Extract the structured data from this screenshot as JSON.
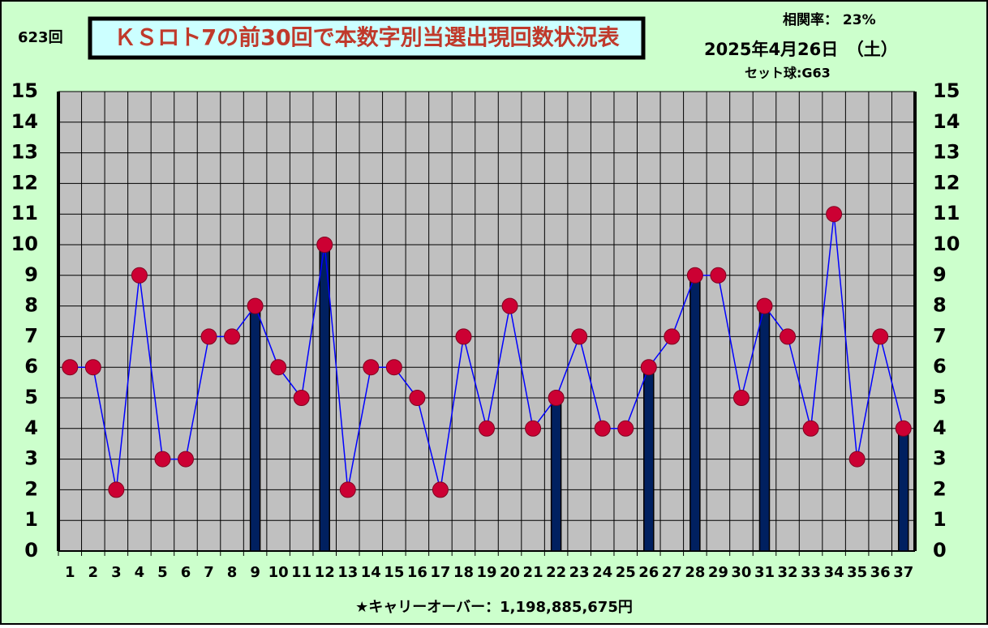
{
  "chart_data": {
    "type": "combo",
    "title": "ＫＳロト7の前30回で本数字別当選出現回数状況表",
    "round_label": "623回",
    "correlation": "相関率：  23%",
    "date": "2025年4月26日　（土）",
    "set_ball": "セット球:G63",
    "footer": "★キャリーオーバー：1,198,885,675円",
    "categories": [
      "1",
      "2",
      "3",
      "4",
      "5",
      "6",
      "7",
      "8",
      "9",
      "10",
      "11",
      "12",
      "13",
      "14",
      "15",
      "16",
      "17",
      "18",
      "19",
      "20",
      "21",
      "22",
      "23",
      "24",
      "25",
      "26",
      "27",
      "28",
      "29",
      "30",
      "31",
      "32",
      "33",
      "34",
      "35",
      "36",
      "37"
    ],
    "series": [
      {
        "type": "bar",
        "color": "#002060",
        "values": [
          null,
          null,
          null,
          null,
          null,
          null,
          null,
          null,
          8,
          null,
          null,
          10,
          null,
          null,
          null,
          null,
          null,
          null,
          null,
          null,
          null,
          5,
          null,
          null,
          null,
          6,
          null,
          9,
          null,
          null,
          8,
          null,
          null,
          null,
          null,
          null,
          4
        ]
      },
      {
        "type": "line",
        "color": "#0000ff",
        "marker_color": "#cc0033",
        "values": [
          6,
          6,
          2,
          9,
          3,
          3,
          7,
          7,
          8,
          6,
          5,
          10,
          2,
          6,
          6,
          5,
          2,
          7,
          4,
          8,
          4,
          5,
          7,
          4,
          4,
          6,
          7,
          9,
          9,
          5,
          8,
          7,
          4,
          11,
          3,
          7,
          4
        ]
      }
    ],
    "ylim": [
      0,
      15
    ],
    "yticks": [
      0,
      1,
      2,
      3,
      4,
      5,
      6,
      7,
      8,
      9,
      10,
      11,
      12,
      13,
      14,
      15
    ],
    "grid": true,
    "background": "#ccffcc",
    "plot_background": "#c0c0c0"
  }
}
